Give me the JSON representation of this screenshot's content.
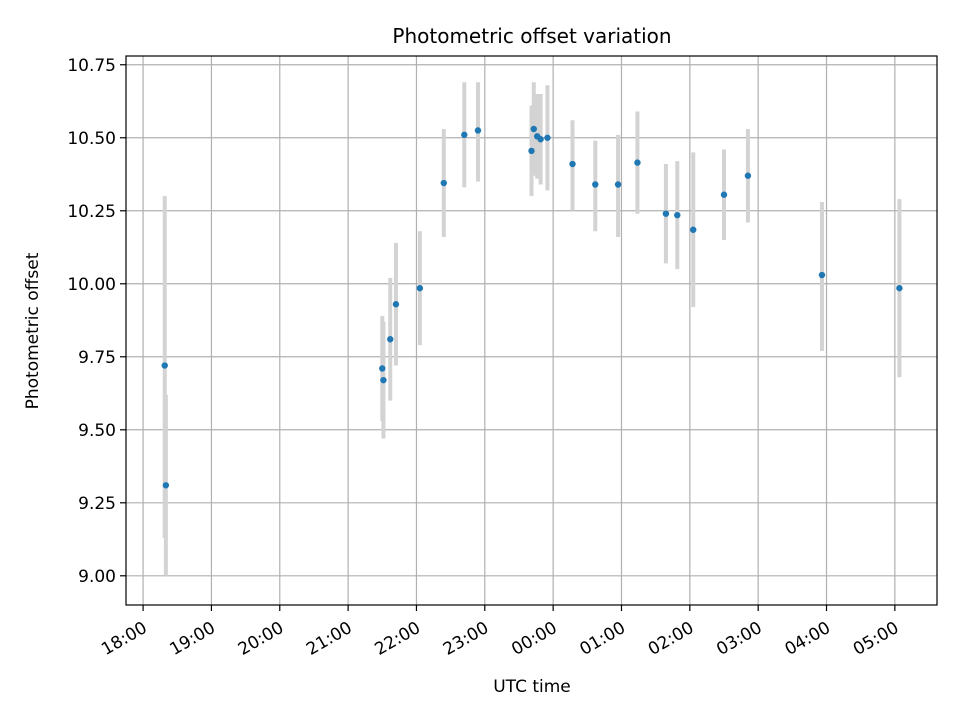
{
  "chart_data": {
    "type": "scatter",
    "title": "Photometric offset variation",
    "xlabel": "UTC time",
    "ylabel": "Photometric offset",
    "x_axis_type": "time",
    "xlim": [
      "17:45",
      "05:37"
    ],
    "x_ticks": [
      "18:00",
      "19:00",
      "20:00",
      "21:00",
      "22:00",
      "23:00",
      "00:00",
      "01:00",
      "02:00",
      "03:00",
      "04:00",
      "05:00"
    ],
    "ylim": [
      8.9,
      10.78
    ],
    "y_ticks": [
      "9.00",
      "9.25",
      "9.50",
      "9.75",
      "10.00",
      "10.25",
      "10.50",
      "10.75"
    ],
    "grid": true,
    "x_tick_rotation_deg": 30,
    "colors": {
      "marker": "#1f77b4",
      "errorbar": "#d3d3d3",
      "grid": "#b0b0b0"
    },
    "points": [
      {
        "time": "18:19",
        "y": 9.72,
        "ylow": 9.13,
        "yhigh": 10.3
      },
      {
        "time": "18:20",
        "y": 9.31,
        "ylow": 9.0,
        "yhigh": 9.62
      },
      {
        "time": "21:30",
        "y": 9.71,
        "ylow": 9.53,
        "yhigh": 9.89
      },
      {
        "time": "21:31",
        "y": 9.67,
        "ylow": 9.47,
        "yhigh": 9.87
      },
      {
        "time": "21:37",
        "y": 9.81,
        "ylow": 9.6,
        "yhigh": 10.02
      },
      {
        "time": "21:42",
        "y": 9.93,
        "ylow": 9.72,
        "yhigh": 10.14
      },
      {
        "time": "22:03",
        "y": 9.985,
        "ylow": 9.79,
        "yhigh": 10.18
      },
      {
        "time": "22:24",
        "y": 10.345,
        "ylow": 10.16,
        "yhigh": 10.53
      },
      {
        "time": "22:42",
        "y": 10.51,
        "ylow": 10.33,
        "yhigh": 10.69
      },
      {
        "time": "22:54",
        "y": 10.525,
        "ylow": 10.35,
        "yhigh": 10.69
      },
      {
        "time": "23:41",
        "y": 10.455,
        "ylow": 10.3,
        "yhigh": 10.61
      },
      {
        "time": "23:43",
        "y": 10.53,
        "ylow": 10.37,
        "yhigh": 10.69
      },
      {
        "time": "23:46",
        "y": 10.505,
        "ylow": 10.36,
        "yhigh": 10.65
      },
      {
        "time": "23:49",
        "y": 10.495,
        "ylow": 10.34,
        "yhigh": 10.65
      },
      {
        "time": "23:55",
        "y": 10.5,
        "ylow": 10.32,
        "yhigh": 10.68
      },
      {
        "time": "00:17",
        "y": 10.41,
        "ylow": 10.25,
        "yhigh": 10.56
      },
      {
        "time": "00:37",
        "y": 10.34,
        "ylow": 10.18,
        "yhigh": 10.49
      },
      {
        "time": "00:57",
        "y": 10.34,
        "ylow": 10.16,
        "yhigh": 10.51
      },
      {
        "time": "01:14",
        "y": 10.415,
        "ylow": 10.24,
        "yhigh": 10.59
      },
      {
        "time": "01:39",
        "y": 10.24,
        "ylow": 10.07,
        "yhigh": 10.41
      },
      {
        "time": "01:49",
        "y": 10.235,
        "ylow": 10.05,
        "yhigh": 10.42
      },
      {
        "time": "02:03",
        "y": 10.185,
        "ylow": 9.92,
        "yhigh": 10.45
      },
      {
        "time": "02:30",
        "y": 10.305,
        "ylow": 10.15,
        "yhigh": 10.46
      },
      {
        "time": "02:51",
        "y": 10.37,
        "ylow": 10.21,
        "yhigh": 10.53
      },
      {
        "time": "03:56",
        "y": 10.03,
        "ylow": 9.77,
        "yhigh": 10.28
      },
      {
        "time": "05:04",
        "y": 9.985,
        "ylow": 9.68,
        "yhigh": 10.29
      }
    ]
  }
}
